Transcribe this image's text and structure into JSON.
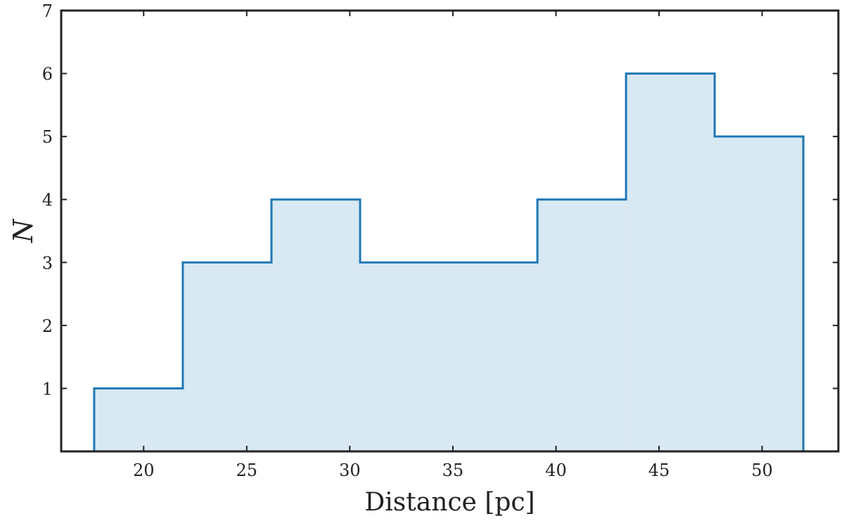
{
  "chart_data": {
    "type": "histogram",
    "title": "",
    "xlabel": "Distance [pc]",
    "ylabel": "N",
    "xlim": [
      16,
      53.7
    ],
    "ylim": [
      0,
      7
    ],
    "xticks": [
      20,
      25,
      30,
      35,
      40,
      45,
      50
    ],
    "yticks": [
      1,
      2,
      3,
      4,
      5,
      6,
      7
    ],
    "bin_edges": [
      17.6,
      21.9,
      26.2,
      30.5,
      34.8,
      39.1,
      43.4,
      47.7,
      52.0
    ],
    "counts": [
      1,
      3,
      4,
      3,
      3,
      4,
      6,
      5
    ],
    "grid": false,
    "legend": "none",
    "colors": {
      "line": "#1f77b4",
      "fill": "#d8e9f3",
      "axis": "#222222"
    }
  }
}
